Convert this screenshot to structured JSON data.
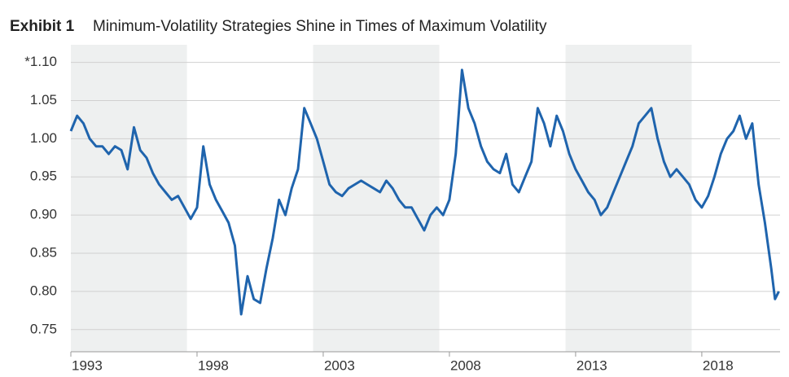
{
  "chart_data": {
    "type": "line",
    "title_label": "Exhibit 1",
    "title": "Minimum-Volatility Strategies Shine in Times of Maximum Volatility",
    "x": [
      1993,
      1993.25,
      1993.5,
      1993.75,
      1994,
      1994.25,
      1994.5,
      1994.75,
      1995,
      1995.25,
      1995.5,
      1995.75,
      1996,
      1996.25,
      1996.5,
      1996.75,
      1997,
      1997.25,
      1997.5,
      1997.75,
      1998,
      1998.25,
      1998.5,
      1998.75,
      1999,
      1999.25,
      1999.5,
      1999.75,
      2000,
      2000.25,
      2000.5,
      2000.75,
      2001,
      2001.25,
      2001.5,
      2001.75,
      2002,
      2002.25,
      2002.5,
      2002.75,
      2003,
      2003.25,
      2003.5,
      2003.75,
      2004,
      2004.25,
      2004.5,
      2004.75,
      2005,
      2005.25,
      2005.5,
      2005.75,
      2006,
      2006.25,
      2006.5,
      2006.75,
      2007,
      2007.25,
      2007.5,
      2007.75,
      2008,
      2008.25,
      2008.5,
      2008.75,
      2009,
      2009.25,
      2009.5,
      2009.75,
      2010,
      2010.25,
      2010.5,
      2010.75,
      2011,
      2011.25,
      2011.5,
      2011.75,
      2012,
      2012.25,
      2012.5,
      2012.75,
      2013,
      2013.25,
      2013.5,
      2013.75,
      2014,
      2014.25,
      2014.5,
      2014.75,
      2015,
      2015.25,
      2015.5,
      2015.75,
      2016,
      2016.25,
      2016.5,
      2016.75,
      2017,
      2017.25,
      2017.5,
      2017.75,
      2018,
      2018.25,
      2018.5,
      2018.75,
      2019,
      2019.25,
      2019.5,
      2019.75,
      2020,
      2020.25,
      2020.5,
      2020.75,
      2020.9,
      2021.05
    ],
    "series": [
      {
        "color": "#1f64ad",
        "values": [
          1.01,
          1.03,
          1.02,
          1.0,
          0.99,
          0.99,
          0.98,
          0.99,
          0.985,
          0.96,
          1.015,
          0.985,
          0.975,
          0.955,
          0.94,
          0.93,
          0.92,
          0.925,
          0.91,
          0.895,
          0.91,
          0.99,
          0.94,
          0.92,
          0.905,
          0.89,
          0.86,
          0.77,
          0.82,
          0.79,
          0.785,
          0.83,
          0.87,
          0.92,
          0.9,
          0.935,
          0.96,
          1.04,
          1.02,
          1.0,
          0.97,
          0.94,
          0.93,
          0.925,
          0.935,
          0.94,
          0.945,
          0.94,
          0.935,
          0.93,
          0.945,
          0.935,
          0.92,
          0.91,
          0.91,
          0.895,
          0.88,
          0.9,
          0.91,
          0.9,
          0.92,
          0.98,
          1.09,
          1.04,
          1.02,
          0.99,
          0.97,
          0.96,
          0.955,
          0.98,
          0.94,
          0.93,
          0.95,
          0.97,
          1.04,
          1.02,
          0.99,
          1.03,
          1.01,
          0.98,
          0.96,
          0.945,
          0.93,
          0.92,
          0.9,
          0.91,
          0.93,
          0.95,
          0.97,
          0.99,
          1.02,
          1.03,
          1.04,
          1.0,
          0.97,
          0.95,
          0.96,
          0.95,
          0.94,
          0.92,
          0.91,
          0.925,
          0.95,
          0.98,
          1.0,
          1.01,
          1.03,
          1.0,
          1.02,
          0.94,
          0.89,
          0.83,
          0.79,
          0.8
        ]
      }
    ],
    "shaded_ranges": [
      [
        1993,
        1997.6
      ],
      [
        2002.6,
        2007.6
      ],
      [
        2012.6,
        2017.6
      ]
    ],
    "shade_color": "#eef0f0",
    "xlim": [
      1993,
      2021.1
    ],
    "xticks": [
      1993,
      1998,
      2003,
      2008,
      2013,
      2018
    ],
    "ylim": [
      0.721,
      1.123
    ],
    "yticks": [
      {
        "value": 0.75,
        "label": "0.75"
      },
      {
        "value": 0.8,
        "label": "0.80"
      },
      {
        "value": 0.85,
        "label": "0.85"
      },
      {
        "value": 0.9,
        "label": "0.90"
      },
      {
        "value": 0.95,
        "label": "0.95"
      },
      {
        "value": 1.0,
        "label": "1.00"
      },
      {
        "value": 1.05,
        "label": "1.05"
      },
      {
        "value": 1.1,
        "label": "*1.10"
      }
    ],
    "grid": true
  }
}
